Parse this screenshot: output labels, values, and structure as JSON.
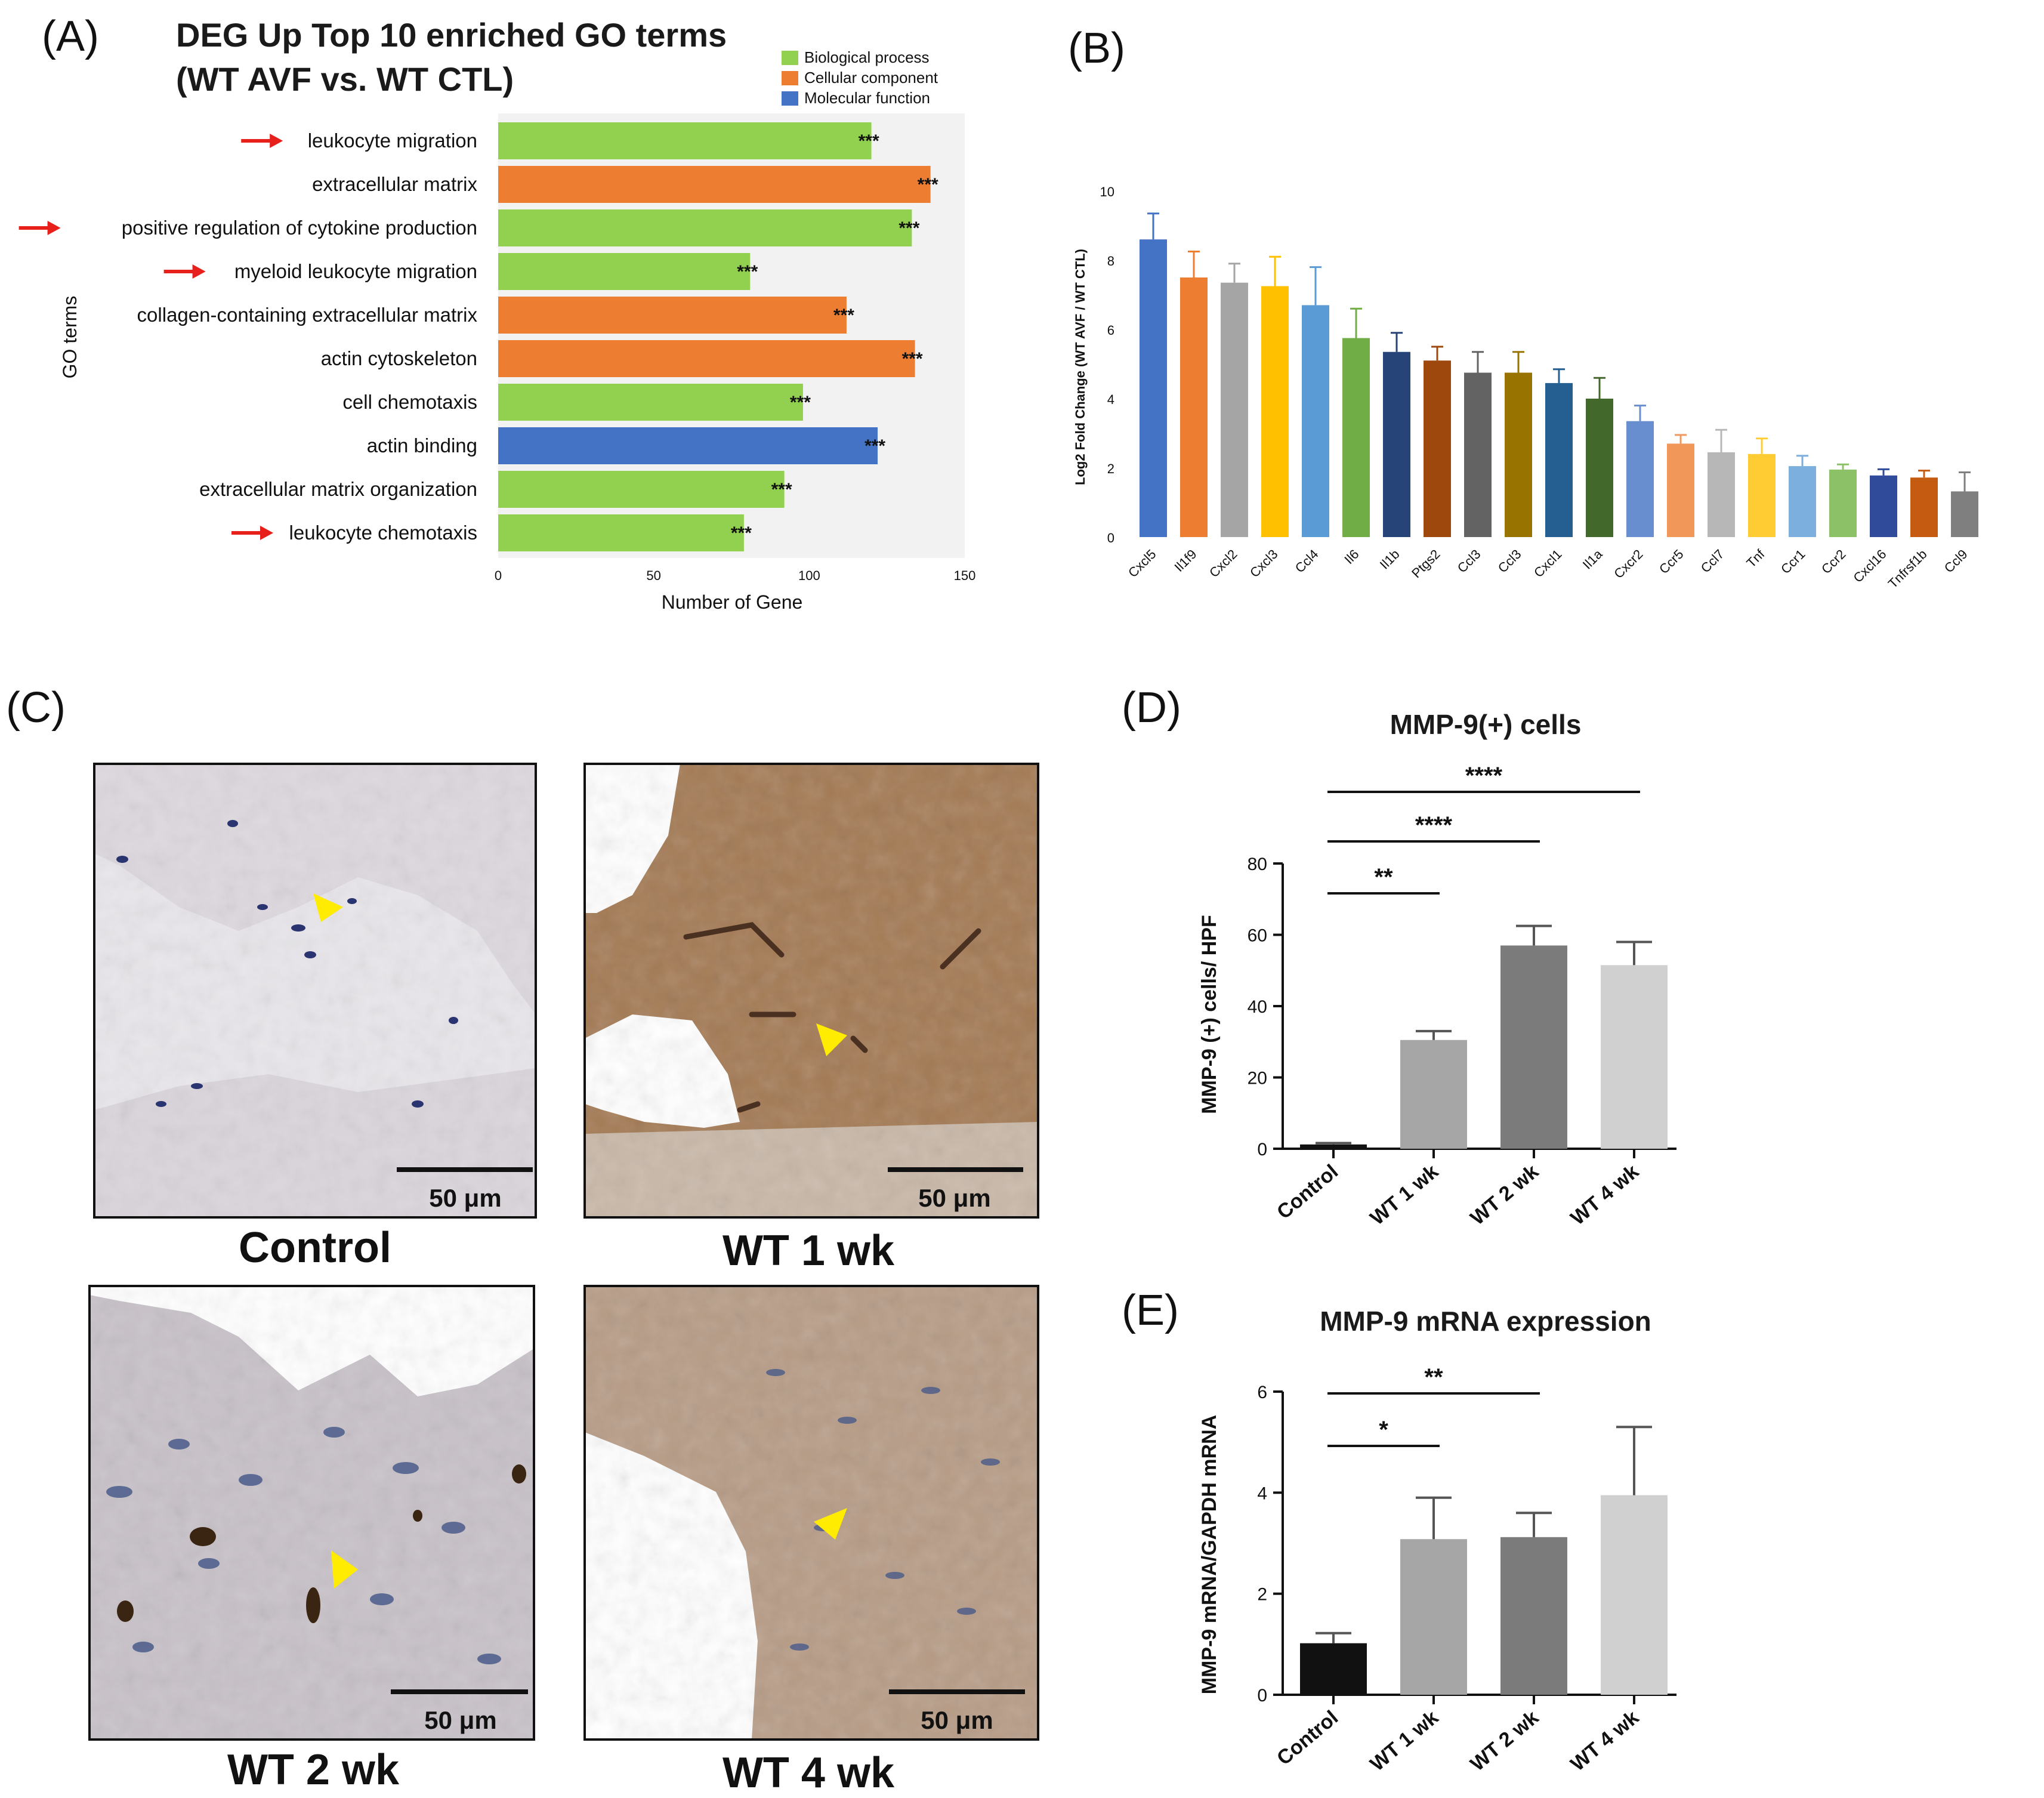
{
  "panels": {
    "A": {
      "letter": "(A)"
    },
    "B": {
      "letter": "(B)"
    },
    "C": {
      "letter": "(C)"
    },
    "D": {
      "letter": "(D)"
    },
    "E": {
      "letter": "(E)"
    }
  },
  "chart_data": [
    {
      "id": "A",
      "type": "bar",
      "orientation": "horizontal",
      "title": "DEG Up Top 10 enriched GO terms",
      "subtitle": "(WT AVF vs. WT CTL)",
      "xlabel": "Number of Gene",
      "ylabel": "GO terms",
      "xlim": [
        0,
        150
      ],
      "xticks": [
        0,
        50,
        100,
        150
      ],
      "grid": false,
      "legend_placement": "top-right",
      "legend": [
        {
          "name": "Biological process",
          "color": "#92d050"
        },
        {
          "name": "Cellular component",
          "color": "#ed7d31"
        },
        {
          "name": "Molecular function",
          "color": "#4472c4"
        }
      ],
      "categories": [
        "leukocyte migration",
        "extracellular matrix",
        "positive regulation of cytokine production",
        "myeloid leukocyte migration",
        "collagen-containing extracellular matrix",
        "actin cytoskeleton",
        "cell chemotaxis",
        "actin binding",
        "extracellular matrix organization",
        "leukocyte chemotaxis"
      ],
      "values": [
        120,
        139,
        133,
        81,
        112,
        134,
        98,
        122,
        92,
        79
      ],
      "groups": [
        "Biological process",
        "Cellular component",
        "Biological process",
        "Biological process",
        "Cellular component",
        "Cellular component",
        "Biological process",
        "Molecular function",
        "Biological process",
        "Biological process"
      ],
      "significance": [
        "***",
        "***",
        "***",
        "***",
        "***",
        "***",
        "***",
        "***",
        "***",
        "***"
      ],
      "arrows": [
        true,
        false,
        true,
        true,
        false,
        false,
        false,
        false,
        false,
        true
      ],
      "arrow_color": "#e8201c"
    },
    {
      "id": "B",
      "type": "bar",
      "ylabel": "Log2 Fold Change (WT AVF / WT CTL)",
      "ylim": [
        0,
        10
      ],
      "yticks": [
        0,
        2,
        4,
        6,
        8,
        10
      ],
      "categories": [
        "Cxcl5",
        "Il1f9",
        "Cxcl2",
        "Cxcl3",
        "Ccl4",
        "Il6",
        "Il1b",
        "Ptgs2",
        "Ccl3",
        "Ccl3",
        "Cxcl1",
        "Il1a",
        "Cxcr2",
        "Ccr5",
        "Ccl7",
        "Tnf",
        "Ccr1",
        "Ccr2",
        "Cxcl16",
        "Tnfrsf1b",
        "Ccl9"
      ],
      "values": [
        8.6,
        7.5,
        7.35,
        7.25,
        6.7,
        5.75,
        5.35,
        5.1,
        4.75,
        4.75,
        4.45,
        4.0,
        3.35,
        2.7,
        2.45,
        2.4,
        2.05,
        1.95,
        1.78,
        1.72,
        1.32
      ],
      "errors": [
        0.75,
        0.75,
        0.55,
        0.85,
        1.1,
        0.85,
        0.55,
        0.4,
        0.6,
        0.6,
        0.4,
        0.6,
        0.45,
        0.25,
        0.65,
        0.45,
        0.3,
        0.15,
        0.18,
        0.2,
        0.55
      ],
      "colors": [
        "#4472c4",
        "#ed7d31",
        "#a5a5a5",
        "#ffc000",
        "#5b9bd5",
        "#70ad47",
        "#264478",
        "#9e480e",
        "#636363",
        "#997300",
        "#255e91",
        "#43682b",
        "#698ed0",
        "#f1975a",
        "#b7b7b7",
        "#ffcd33",
        "#7cafdd",
        "#8cc168",
        "#2f4b99",
        "#c55a11",
        "#7f7f7f"
      ]
    },
    {
      "id": "D",
      "type": "bar",
      "title": "MMP-9(+) cells",
      "ylabel": "MMP-9 (+) cells/ HPF",
      "ylim": [
        0,
        80
      ],
      "yticks": [
        0,
        20,
        40,
        60,
        80
      ],
      "categories": [
        "Control",
        "WT 1 wk",
        "WT 2 wk",
        "WT 4 wk"
      ],
      "values": [
        1.2,
        30.5,
        57,
        51.5
      ],
      "errors": [
        0.4,
        2.5,
        5.5,
        6.5
      ],
      "colors": [
        "#111111",
        "#a6a6a6",
        "#7b7b7b",
        "#d0d0d0"
      ],
      "comparisons": [
        {
          "from": 0,
          "to": 1,
          "label": "**"
        },
        {
          "from": 0,
          "to": 2,
          "label": "****"
        },
        {
          "from": 0,
          "to": 3,
          "label": "****"
        }
      ]
    },
    {
      "id": "E",
      "type": "bar",
      "title": "MMP-9 mRNA expression",
      "ylabel": "MMP-9 mRNA/GAPDH mRNA",
      "ylim": [
        0,
        6
      ],
      "yticks": [
        0,
        2,
        4,
        6
      ],
      "categories": [
        "Control",
        "WT 1 wk",
        "WT 2 wk",
        "WT 4 wk"
      ],
      "values": [
        1.02,
        3.08,
        3.12,
        3.95
      ],
      "errors": [
        0.2,
        0.82,
        0.48,
        1.35
      ],
      "colors": [
        "#111111",
        "#a6a6a6",
        "#7b7b7b",
        "#d0d0d0"
      ],
      "comparisons": [
        {
          "from": 0,
          "to": 1,
          "label": "*"
        },
        {
          "from": 0,
          "to": 2,
          "label": "**"
        }
      ]
    }
  ],
  "micrographs": [
    {
      "caption": "Control",
      "scale_label": "50 μm"
    },
    {
      "caption": "WT 1 wk",
      "scale_label": "50 μm"
    },
    {
      "caption": "WT 2 wk",
      "scale_label": "50 μm"
    },
    {
      "caption": "WT 4 wk",
      "scale_label": "50 μm"
    }
  ]
}
